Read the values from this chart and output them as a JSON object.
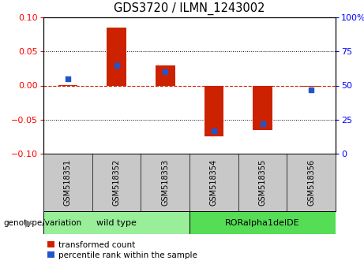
{
  "title": "GDS3720 / ILMN_1243002",
  "samples": [
    "GSM518351",
    "GSM518352",
    "GSM518353",
    "GSM518354",
    "GSM518355",
    "GSM518356"
  ],
  "red_values": [
    0.001,
    0.085,
    0.03,
    -0.075,
    -0.065,
    -0.002
  ],
  "blue_values": [
    55,
    65,
    60,
    17,
    22,
    47
  ],
  "ylim_left": [
    -0.1,
    0.1
  ],
  "ylim_right": [
    0,
    100
  ],
  "yticks_left": [
    -0.1,
    -0.05,
    0,
    0.05,
    0.1
  ],
  "yticks_right": [
    0,
    25,
    50,
    75,
    100
  ],
  "ytick_labels_right": [
    "0",
    "25",
    "50",
    "75",
    "100%"
  ],
  "red_color": "#CC2200",
  "blue_color": "#2255CC",
  "dashed_line_color": "#CC2200",
  "group1_label": "wild type",
  "group2_label": "RORalpha1delDE",
  "group1_color": "#99EE99",
  "group2_color": "#55DD55",
  "group_header": "genotype/variation",
  "legend1": "transformed count",
  "legend2": "percentile rank within the sample",
  "bar_width": 0.4,
  "label_area_color": "#C8C8C8",
  "bg_color": "#FFFFFF"
}
